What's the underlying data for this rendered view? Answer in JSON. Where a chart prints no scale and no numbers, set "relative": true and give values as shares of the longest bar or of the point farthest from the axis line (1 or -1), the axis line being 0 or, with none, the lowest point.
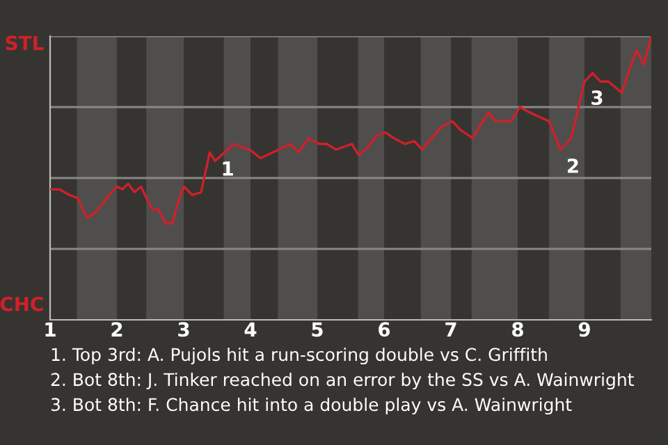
{
  "chart_data": {
    "type": "line",
    "x": [
      1.0,
      1.14,
      1.29,
      1.41,
      1.55,
      1.69,
      1.85,
      2.0,
      2.08,
      2.17,
      2.26,
      2.36,
      2.44,
      2.53,
      2.62,
      2.73,
      2.83,
      2.91,
      3.0,
      3.13,
      3.26,
      3.39,
      3.47,
      3.61,
      3.75,
      3.99,
      4.15,
      4.42,
      4.6,
      4.72,
      4.87,
      5.03,
      5.14,
      5.28,
      5.52,
      5.62,
      5.76,
      5.89,
      6.02,
      6.15,
      6.31,
      6.45,
      6.57,
      6.71,
      6.86,
      7.02,
      7.14,
      7.33,
      7.45,
      7.56,
      7.67,
      7.9,
      8.03,
      8.19,
      8.47,
      8.64,
      8.8,
      9.0,
      9.12,
      9.24,
      9.36,
      9.56,
      9.67,
      9.78,
      9.89,
      10.0
    ],
    "series": [
      {
        "color": "#d0202a",
        "values": [
          0.46,
          0.46,
          0.44,
          0.43,
          0.36,
          0.38,
          0.43,
          0.47,
          0.46,
          0.48,
          0.45,
          0.47,
          0.43,
          0.39,
          0.39,
          0.34,
          0.34,
          0.41,
          0.47,
          0.44,
          0.45,
          0.59,
          0.56,
          0.59,
          0.62,
          0.6,
          0.57,
          0.6,
          0.62,
          0.59,
          0.64,
          0.62,
          0.62,
          0.6,
          0.62,
          0.58,
          0.61,
          0.65,
          0.66,
          0.64,
          0.62,
          0.63,
          0.6,
          0.64,
          0.68,
          0.7,
          0.67,
          0.64,
          0.69,
          0.73,
          0.7,
          0.7,
          0.75,
          0.73,
          0.7,
          0.6,
          0.64,
          0.84,
          0.87,
          0.84,
          0.84,
          0.8,
          0.88,
          0.95,
          0.9,
          1.0
        ]
      }
    ],
    "relative": true,
    "xlim": [
      1,
      10
    ],
    "xticks": [
      1,
      2,
      3,
      4,
      5,
      6,
      7,
      8,
      9
    ],
    "ref_lines": [
      {
        "axis": "y",
        "value": 0.25,
        "color": "#8a8886"
      },
      {
        "axis": "y",
        "value": 0.5,
        "color": "#8a8886"
      },
      {
        "axis": "y",
        "value": 0.75,
        "color": "#8a8886"
      },
      {
        "axis": "y",
        "value": 1,
        "color": "#8a8886"
      }
    ],
    "bands": [
      {
        "axis": "x",
        "from": 1.4,
        "to": 2,
        "color": "#4f4e4c"
      },
      {
        "axis": "x",
        "from": 2.44,
        "to": 3,
        "color": "#4f4e4c"
      },
      {
        "axis": "x",
        "from": 3.6,
        "to": 4,
        "color": "#4f4e4c"
      },
      {
        "axis": "x",
        "from": 4.41,
        "to": 5,
        "color": "#4f4e4c"
      },
      {
        "axis": "x",
        "from": 5.61,
        "to": 6,
        "color": "#4f4e4c"
      },
      {
        "axis": "x",
        "from": 6.55,
        "to": 7,
        "color": "#4f4e4c"
      },
      {
        "axis": "x",
        "from": 7.31,
        "to": 8,
        "color": "#4f4e4c"
      },
      {
        "axis": "x",
        "from": 8.47,
        "to": 9,
        "color": "#4f4e4c"
      },
      {
        "axis": "x",
        "from": 9.54,
        "to": 10,
        "color": "#4f4e4c"
      }
    ],
    "annotations": [
      {
        "text": "1",
        "x": 3.47,
        "y": 0.59
      },
      {
        "text": "2",
        "x": 8.64,
        "y": 0.6
      },
      {
        "text": "3",
        "x": 9.0,
        "y": 0.84
      },
      "STL",
      "CHC",
      "1. Top 3rd: A. Pujols hit a run-scoring double vs C. Griffith",
      "2. Bot 8th: J. Tinker reached on an error by the SS vs A. Wainwright",
      "3. Bot 8th: F. Chance hit into a double play vs A. Wainwright"
    ]
  }
}
